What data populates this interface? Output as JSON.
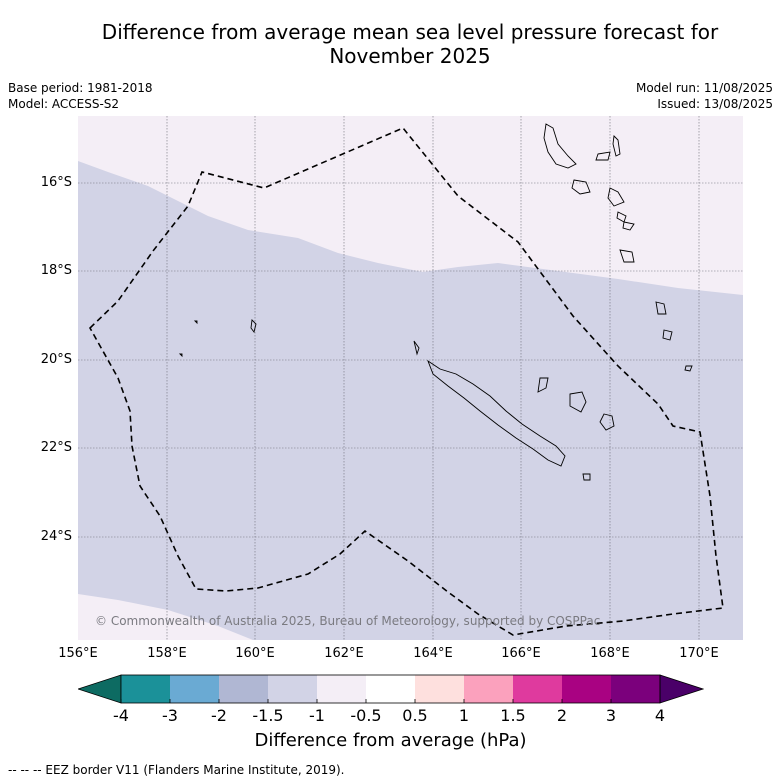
{
  "header": {
    "title_line1": "Difference from average mean sea level pressure forecast for",
    "title_line2": "November 2025",
    "base_period": "Base period: 1981-2018",
    "model": "Model: ACCESS-S2",
    "model_run": "Model run: 11/08/2025",
    "issued": "Issued: 13/08/2025"
  },
  "map": {
    "lat_labels": [
      "16°S",
      "18°S",
      "20°S",
      "22°S",
      "24°S"
    ],
    "lon_labels": [
      "156°E",
      "158°E",
      "160°E",
      "162°E",
      "164°E",
      "166°E",
      "168°E",
      "170°E"
    ],
    "copyright": "© Commonwealth of Australia 2025, Bureau of Meteorology, supported by COSPPac",
    "colors": {
      "band_neg1_to_neg05": "#f4eef6",
      "band_neg15_to_neg1": "#d2d3e6",
      "land_outline": "#000000",
      "eez_line": "#000000"
    }
  },
  "colorbar": {
    "tick_labels": [
      "-4",
      "-3",
      "-2",
      "-1.5",
      "-1",
      "-0.5",
      "0.5",
      "1",
      "1.5",
      "2",
      "3",
      "4"
    ],
    "colors": [
      "#0d6b62",
      "#1b9199",
      "#6aaad3",
      "#b0b7d3",
      "#d2d3e6",
      "#f4eef6",
      "#ffffff",
      "#fee0de",
      "#fba1bd",
      "#df3a9e",
      "#a90282",
      "#7b007c",
      "#4a0068"
    ],
    "title": "Difference from average (hPa)"
  },
  "footnote": "-- -- -- EEZ border V11 (Flanders Marine Institute, 2019)."
}
